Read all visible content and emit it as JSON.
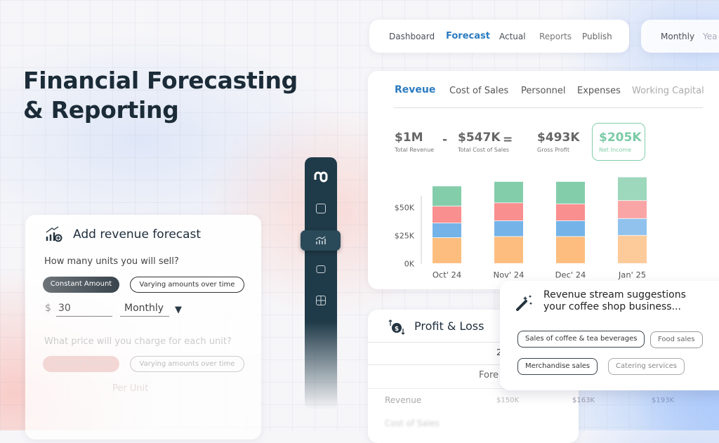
{
  "headline": {
    "line1": "Financial Forecasting",
    "line2": "& Reporting"
  },
  "top_nav": {
    "items": [
      "Dashboard",
      "Forecast",
      "Actual",
      "Reports",
      "Publish"
    ],
    "active": "Forecast"
  },
  "period_toggle": {
    "items": [
      "Monthly",
      "Yea"
    ]
  },
  "main_tabs": {
    "items": [
      "Reveue",
      "Cost of Sales",
      "Personnel",
      "Expenses",
      "Working Capital"
    ],
    "active": "Reveue"
  },
  "kpis": [
    {
      "value": "$1M",
      "label": "Total Revenue"
    },
    {
      "operator": "-"
    },
    {
      "value": "$547K",
      "label": "Total Cost of Sales"
    },
    {
      "operator": "="
    },
    {
      "value": "$493K",
      "label": "Gross Profit"
    },
    {
      "value": "$205K",
      "label": "Net Income"
    }
  ],
  "colors": {
    "accent": "#2b7bbf",
    "net_income": "#7ccaa6",
    "sidebar": "#1f3a48",
    "series": [
      "#fdbd7f",
      "#74b3e8",
      "#f98f8f",
      "#84cdab"
    ]
  },
  "chart_data": {
    "type": "bar",
    "stacked": true,
    "categories": [
      "Oct' 24",
      "Nov' 24",
      "Dec' 24",
      "Jan' 25"
    ],
    "series": [
      {
        "values": [
          23,
          24,
          24,
          25
        ]
      },
      {
        "values": [
          13,
          14,
          14,
          15
        ]
      },
      {
        "values": [
          15,
          16,
          15,
          16
        ]
      },
      {
        "values": [
          18,
          19,
          20,
          21
        ]
      }
    ],
    "yticks": [
      "0K",
      "$25K",
      "$50K"
    ],
    "ytick_values": [
      0,
      25,
      50
    ],
    "ylim": [
      0,
      80
    ],
    "grid": false
  },
  "suggestions": {
    "title_line1": "Revenue stream suggestions",
    "title_line2": "your coffee shop business...",
    "chips": [
      "Sales of coffee & tea beverages",
      "Food sales",
      "Merchandise sales",
      "Catering services"
    ]
  },
  "pnl": {
    "title": "Profit & Loss",
    "year_header": "2",
    "sub_header": "Fore",
    "rows": [
      {
        "label": "Revenue",
        "values": [
          "$150K",
          "$163K",
          "$193K"
        ]
      },
      {
        "label": "Cost of Sales"
      }
    ]
  },
  "forecast_form": {
    "title": "Add revenue forecast",
    "q1": "How many units you will sell?",
    "opt_constant": "Constant Amount",
    "opt_varying": "Varying amounts over time",
    "currency": "$",
    "amount": "30",
    "frequency": "Monthly",
    "q2": "What price will you charge for each unit?",
    "per_unit": "Per Unit"
  },
  "sidebar": {
    "items": [
      "logo",
      "report",
      "forecast",
      "accounts",
      "grid"
    ],
    "active": "forecast"
  }
}
